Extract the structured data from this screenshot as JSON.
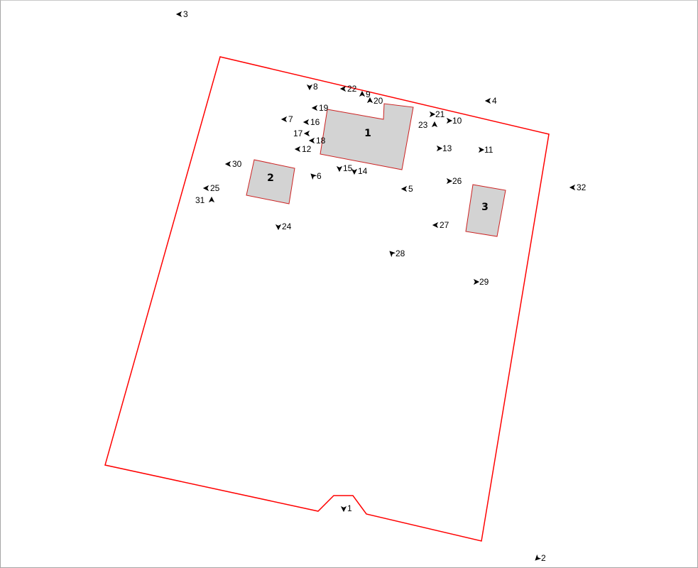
{
  "map": {
    "colors": {
      "parcel_boundary": "#ff0000",
      "building_fill": "#d3d3d3",
      "building_outline": "#cc2222",
      "marker": "#000000"
    },
    "buildings": [
      {
        "id": "1",
        "label": "1"
      },
      {
        "id": "2",
        "label": "2"
      },
      {
        "id": "3",
        "label": "3"
      }
    ],
    "photo_points": [
      {
        "id": "1",
        "label": "1",
        "direction": "down"
      },
      {
        "id": "2",
        "label": "2",
        "direction": "down-left"
      },
      {
        "id": "3",
        "label": "3",
        "direction": "left"
      },
      {
        "id": "4",
        "label": "4",
        "direction": "left"
      },
      {
        "id": "5",
        "label": "5",
        "direction": "left"
      },
      {
        "id": "6",
        "label": "6",
        "direction": "up-left"
      },
      {
        "id": "7",
        "label": "7",
        "direction": "left"
      },
      {
        "id": "8",
        "label": "8",
        "direction": "down"
      },
      {
        "id": "9",
        "label": "9",
        "direction": "up"
      },
      {
        "id": "10",
        "label": "10",
        "direction": "right"
      },
      {
        "id": "11",
        "label": "11",
        "direction": "right"
      },
      {
        "id": "12",
        "label": "12",
        "direction": "left"
      },
      {
        "id": "13",
        "label": "13",
        "direction": "right"
      },
      {
        "id": "14",
        "label": "14",
        "direction": "down"
      },
      {
        "id": "15",
        "label": "15",
        "direction": "down"
      },
      {
        "id": "16",
        "label": "16",
        "direction": "left"
      },
      {
        "id": "17",
        "label": "17",
        "direction": "left"
      },
      {
        "id": "18",
        "label": "18",
        "direction": "left"
      },
      {
        "id": "19",
        "label": "19",
        "direction": "left"
      },
      {
        "id": "20",
        "label": "20",
        "direction": "up"
      },
      {
        "id": "21",
        "label": "21",
        "direction": "right"
      },
      {
        "id": "22",
        "label": "22",
        "direction": "left"
      },
      {
        "id": "23",
        "label": "23",
        "direction": "up"
      },
      {
        "id": "24",
        "label": "24",
        "direction": "down"
      },
      {
        "id": "25",
        "label": "25",
        "direction": "left"
      },
      {
        "id": "26",
        "label": "26",
        "direction": "right"
      },
      {
        "id": "27",
        "label": "27",
        "direction": "left"
      },
      {
        "id": "28",
        "label": "28",
        "direction": "up-left"
      },
      {
        "id": "29",
        "label": "29",
        "direction": "right"
      },
      {
        "id": "30",
        "label": "30",
        "direction": "left"
      },
      {
        "id": "31",
        "label": "31",
        "direction": "up"
      },
      {
        "id": "32",
        "label": "32",
        "direction": "left"
      }
    ]
  }
}
